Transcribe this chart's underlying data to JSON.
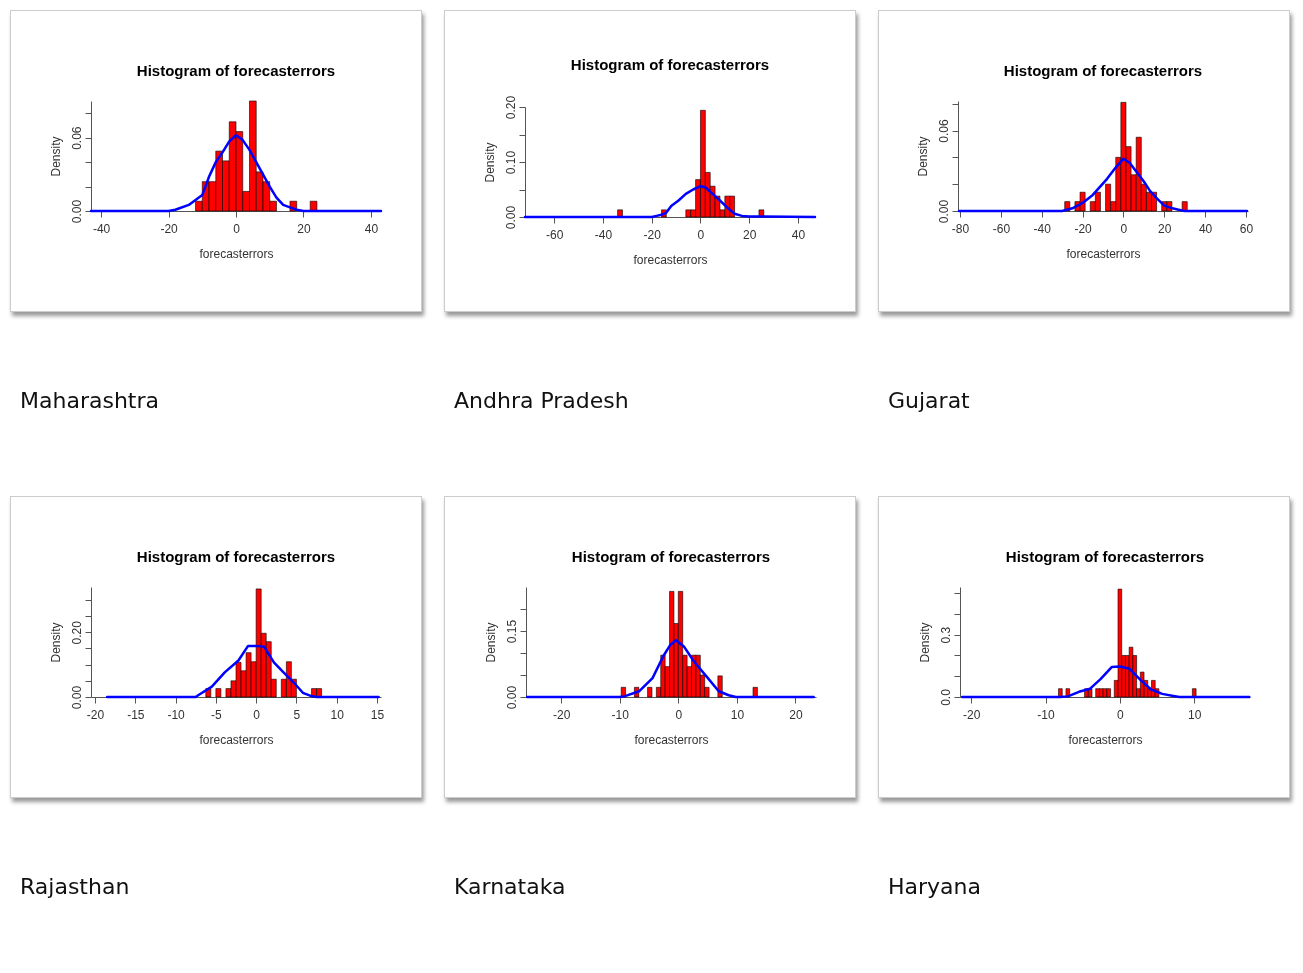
{
  "chart_data": [
    {
      "type": "histogram",
      "title": "Histogram of forecasterrors",
      "xlabel": "forecasterrors",
      "ylabel": "Density",
      "annotations": [
        "Maharashtra"
      ],
      "xlim": [
        -43,
        43
      ],
      "xticks": [
        -40,
        -20,
        0,
        20,
        40
      ],
      "ylim": [
        0,
        0.09
      ],
      "yticks": [
        {
          "value": 0,
          "label": "0.00"
        },
        {
          "value": 0.02,
          "label": null
        },
        {
          "value": 0.04,
          "label": null
        },
        {
          "value": 0.06,
          "label": "0.06"
        },
        {
          "value": 0.08,
          "label": null
        }
      ],
      "bins": [
        -12,
        -10,
        -8,
        -6,
        -4,
        -2,
        0,
        2,
        4,
        6,
        8,
        10,
        12,
        14,
        16,
        18,
        20,
        22,
        24
      ],
      "series": [
        {
          "type": "histogram",
          "color": "#ff0000",
          "values": [
            0.008,
            0.024,
            0.024,
            0.049,
            0.041,
            0.073,
            0.065,
            0.016,
            0.09,
            0.032,
            0.024,
            0.008,
            0,
            0,
            0.008,
            0,
            0,
            0.008
          ]
        },
        {
          "type": "line",
          "color": "#0000ff",
          "x": [
            -43,
            -20,
            -18,
            -14,
            -10,
            -8,
            -6,
            -4,
            -2,
            0,
            2,
            4,
            6,
            8,
            10,
            12,
            14,
            16,
            18,
            20,
            43
          ],
          "values": [
            0,
            0,
            0.001,
            0.005,
            0.013,
            0.028,
            0.04,
            0.048,
            0.057,
            0.062,
            0.058,
            0.05,
            0.04,
            0.03,
            0.02,
            0.011,
            0.005,
            0.003,
            0.001,
            0,
            0
          ]
        }
      ]
    },
    {
      "type": "histogram",
      "title": "Histogram of forecasterrors",
      "xlabel": "forecasterrors",
      "ylabel": "Density",
      "annotations": [
        "Andhra Pradesh"
      ],
      "xlim": [
        -72,
        47
      ],
      "xticks": [
        -60,
        -40,
        -20,
        0,
        20,
        40
      ],
      "ylim": [
        0,
        0.2
      ],
      "yticks": [
        {
          "value": 0,
          "label": "0.00"
        },
        {
          "value": 0.05,
          "label": null
        },
        {
          "value": 0.1,
          "label": "0.10"
        },
        {
          "value": 0.15,
          "label": null
        },
        {
          "value": 0.2,
          "label": "0.20"
        }
      ],
      "bins": [
        -34,
        -32,
        -30,
        -28,
        -26,
        -24,
        -22,
        -20,
        -18,
        -16,
        -14,
        -12,
        -10,
        -8,
        -6,
        -4,
        -2,
        0,
        2,
        4,
        6,
        8,
        10,
        12,
        14,
        16,
        18,
        20,
        22,
        24,
        26
      ],
      "series": [
        {
          "type": "histogram",
          "color": "#ff0000",
          "values": [
            0.013,
            0,
            0,
            0,
            0,
            0,
            0,
            0,
            0,
            0.013,
            0,
            0,
            0,
            0,
            0.013,
            0.013,
            0.068,
            0.194,
            0.081,
            0.056,
            0.038,
            0.013,
            0.038,
            0.038,
            0,
            0,
            0,
            0,
            0,
            0.013
          ]
        },
        {
          "type": "line",
          "color": "#0000ff",
          "x": [
            -72,
            -20,
            -18,
            -16,
            -14,
            -12,
            -9,
            -6,
            -3,
            0,
            2,
            5,
            8,
            11,
            14,
            17,
            20,
            47
          ],
          "values": [
            0,
            0,
            0.002,
            0.004,
            0.008,
            0.02,
            0.03,
            0.042,
            0.05,
            0.056,
            0.054,
            0.042,
            0.03,
            0.017,
            0.006,
            0.002,
            0.001,
            0
          ]
        }
      ]
    },
    {
      "type": "histogram",
      "title": "Histogram of forecasterrors",
      "xlabel": "forecasterrors",
      "ylabel": "Density",
      "annotations": [
        "Gujarat"
      ],
      "xlim": [
        -81,
        61
      ],
      "xticks": [
        -80,
        -60,
        -40,
        -20,
        0,
        20,
        40,
        60
      ],
      "ylim": [
        0,
        0.082
      ],
      "yticks": [
        {
          "value": 0,
          "label": "0.00"
        },
        {
          "value": 0.02,
          "label": null
        },
        {
          "value": 0.04,
          "label": null
        },
        {
          "value": 0.06,
          "label": "0.06"
        },
        {
          "value": 0.08,
          "label": null
        }
      ],
      "bins": [
        -28.75,
        -26.25,
        -23.75,
        -21.25,
        -18.75,
        -16.25,
        -13.75,
        -11.25,
        -8.75,
        -6.25,
        -3.75,
        -1.25,
        1.25,
        3.75,
        6.25,
        8.75,
        11.25,
        13.75,
        16.25,
        18.75,
        21.25,
        23.75,
        26.25,
        28.75,
        31.25
      ],
      "series": [
        {
          "type": "histogram",
          "color": "#ff0000",
          "values": [
            0.007,
            0,
            0.007,
            0.014,
            0,
            0.007,
            0.014,
            0,
            0.02,
            0.007,
            0.04,
            0.081,
            0.048,
            0.027,
            0.055,
            0.02,
            0.014,
            0.014,
            0,
            0.007,
            0.007,
            0,
            0,
            0.007
          ]
        },
        {
          "type": "line",
          "color": "#0000ff",
          "x": [
            -80.5,
            -30,
            -25,
            -20,
            -15,
            -8,
            -4,
            0,
            3,
            6,
            10,
            13,
            16,
            20,
            24,
            27,
            30,
            60.5
          ],
          "values": [
            0,
            0,
            0.002,
            0.006,
            0.012,
            0.024,
            0.032,
            0.039,
            0.036,
            0.03,
            0.022,
            0.015,
            0.01,
            0.004,
            0.002,
            0.001,
            0,
            0
          ]
        }
      ]
    },
    {
      "type": "histogram",
      "title": "Histogram of forecasterrors",
      "xlabel": "forecasterrors",
      "ylabel": "Density",
      "annotations": [
        "Rajasthan"
      ],
      "xlim": [
        -20.5,
        15.5
      ],
      "xticks": [
        -20,
        -15,
        -10,
        -5,
        0,
        5,
        10,
        15
      ],
      "ylim": [
        0,
        0.34
      ],
      "yticks": [
        {
          "value": 0,
          "label": "0.00"
        },
        {
          "value": 0.05,
          "label": null
        },
        {
          "value": 0.1,
          "label": null
        },
        {
          "value": 0.15,
          "label": null
        },
        {
          "value": 0.2,
          "label": "0.20"
        },
        {
          "value": 0.25,
          "label": null
        },
        {
          "value": 0.3,
          "label": null
        }
      ],
      "bins": [
        -6.25,
        -5.625,
        -5,
        -4.375,
        -3.75,
        -3.125,
        -2.5,
        -1.875,
        -1.25,
        -0.625,
        0,
        0.625,
        1.25,
        1.875,
        2.5,
        3.125,
        3.75,
        4.375,
        5,
        5.625,
        6.25,
        6.875,
        7.5,
        8.125
      ],
      "series": [
        {
          "type": "histogram",
          "color": "#ff0000",
          "values": [
            0.026,
            0,
            0.026,
            0,
            0.026,
            0.05,
            0.107,
            0.081,
            0.137,
            0.109,
            0.334,
            0.197,
            0.171,
            0.055,
            0,
            0.055,
            0.109,
            0.055,
            0,
            0,
            0,
            0.026,
            0.026
          ]
        },
        {
          "type": "line",
          "color": "#0000ff",
          "x": [
            -18.5,
            -7.5,
            -7.1,
            -5.5,
            -3.9,
            -2.2,
            -1,
            0,
            1,
            2.2,
            3.4,
            4.7,
            5.8,
            6.7,
            7.5,
            15.2
          ],
          "values": [
            0,
            0,
            0.007,
            0.032,
            0.076,
            0.113,
            0.158,
            0.158,
            0.155,
            0.107,
            0.076,
            0.044,
            0.013,
            0.004,
            0,
            0
          ]
        }
      ]
    },
    {
      "type": "histogram",
      "title": "Histogram of forecasterrors",
      "xlabel": "forecasterrors",
      "ylabel": "Density",
      "annotations": [
        "Karnataka"
      ],
      "xlim": [
        -26,
        23.5
      ],
      "xticks": [
        -20,
        -10,
        0,
        10,
        20
      ],
      "ylim": [
        0,
        0.25
      ],
      "yticks": [
        {
          "value": 0,
          "label": "0.00"
        },
        {
          "value": 0.05,
          "label": null
        },
        {
          "value": 0.1,
          "label": null
        },
        {
          "value": 0.15,
          "label": "0.15"
        },
        {
          "value": 0.2,
          "label": null
        }
      ],
      "bins": [
        -9.75,
        -9,
        -8.25,
        -7.5,
        -6.75,
        -6,
        -5.25,
        -4.5,
        -3.75,
        -3,
        -2.25,
        -1.5,
        -0.75,
        0,
        0.75,
        1.5,
        2.25,
        3,
        3.75,
        4.5,
        5.25,
        6,
        6.75,
        7.5,
        8.25,
        9,
        9.75,
        10.5,
        11.25,
        12,
        12.75,
        13.5
      ],
      "series": [
        {
          "type": "histogram",
          "color": "#ff0000",
          "values": [
            0.022,
            0,
            0,
            0.022,
            0,
            0,
            0.022,
            0,
            0.022,
            0.095,
            0.069,
            0.24,
            0.167,
            0.24,
            0.095,
            0.069,
            0.095,
            0.095,
            0.05,
            0.022,
            0,
            0,
            0.048,
            0,
            0,
            0,
            0,
            0,
            0,
            0,
            0.022
          ]
        },
        {
          "type": "line",
          "color": "#0000ff",
          "x": [
            -25.8,
            -10,
            -9.1,
            -6.7,
            -4.4,
            -2.6,
            -1.4,
            -0.4,
            1,
            2.7,
            4.8,
            6.9,
            8.6,
            9.8,
            23.1
          ],
          "values": [
            0,
            0,
            0.002,
            0.013,
            0.043,
            0.092,
            0.118,
            0.129,
            0.114,
            0.08,
            0.047,
            0.013,
            0.004,
            0,
            0
          ]
        }
      ]
    },
    {
      "type": "histogram",
      "title": "Histogram of forecasterrors",
      "xlabel": "forecasterrors",
      "ylabel": "Density",
      "annotations": [
        "Haryana"
      ],
      "xlim": [
        -21.5,
        17.5
      ],
      "xticks": [
        -20,
        -10,
        0,
        10
      ],
      "ylim": [
        0,
        0.53
      ],
      "yticks": [
        {
          "value": 0,
          "label": "0.0"
        },
        {
          "value": 0.1,
          "label": null
        },
        {
          "value": 0.2,
          "label": null
        },
        {
          "value": 0.3,
          "label": "0.3"
        },
        {
          "value": 0.4,
          "label": null
        },
        {
          "value": 0.5,
          "label": null
        }
      ],
      "bins": [
        -8.25,
        -7.75,
        -7.25,
        -6.75,
        -6.25,
        -5.75,
        -5.25,
        -4.75,
        -4.25,
        -3.75,
        -3.25,
        -2.75,
        -2.25,
        -1.75,
        -1.25,
        -0.75,
        -0.25,
        0.25,
        0.75,
        1.25,
        1.75,
        2.25,
        2.75,
        3.25,
        3.75,
        4.25,
        4.75,
        5.25,
        5.75,
        6.25,
        6.75,
        7.25,
        7.75,
        8.25,
        8.75,
        9.25,
        9.75,
        10.25
      ],
      "series": [
        {
          "type": "histogram",
          "color": "#ff0000",
          "values": [
            0.04,
            0,
            0.04,
            0,
            0,
            0,
            0,
            0.04,
            0.04,
            0,
            0.04,
            0.04,
            0.04,
            0.04,
            0,
            0.08,
            0.52,
            0.2,
            0.2,
            0.24,
            0.2,
            0.04,
            0.12,
            0.08,
            0.04,
            0.08,
            0.04,
            0,
            0,
            0,
            0,
            0,
            0,
            0,
            0,
            0,
            0.04
          ]
        },
        {
          "type": "line",
          "color": "#0000ff",
          "x": [
            -21.2,
            -8,
            -7,
            -5.5,
            -4,
            -2.6,
            -1.1,
            0,
            1.3,
            2.8,
            4.2,
            5.7,
            7.2,
            8,
            17.4
          ],
          "values": [
            0,
            0,
            0.003,
            0.025,
            0.04,
            0.086,
            0.144,
            0.147,
            0.136,
            0.081,
            0.036,
            0.015,
            0.005,
            0,
            0
          ]
        }
      ]
    }
  ]
}
